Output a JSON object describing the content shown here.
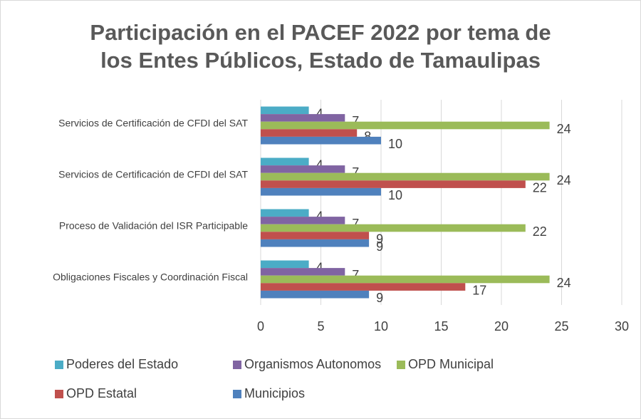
{
  "chart_data": {
    "type": "barh",
    "title": "Participación en el PACEF 2022 por tema de los Entes Públicos, Estado de Tamaulipas",
    "categories": [
      "Obligaciones Fiscales y Coordinación Fiscal",
      "Proceso de Validación del ISR Participable",
      "Servicios de Certificación de CFDI del SAT",
      "Servicios de Certificación de CFDI del SAT"
    ],
    "series": [
      {
        "name": "Poderes del Estado",
        "color": "#4bacc6",
        "values": [
          4,
          4,
          4,
          4
        ]
      },
      {
        "name": "Organismos Autonomos",
        "color": "#8064a2",
        "values": [
          7,
          7,
          7,
          7
        ]
      },
      {
        "name": "OPD Municipal",
        "color": "#9bbb59",
        "values": [
          24,
          22,
          24,
          24
        ]
      },
      {
        "name": "OPD Estatal",
        "color": "#c0504d",
        "values": [
          17,
          9,
          22,
          8
        ]
      },
      {
        "name": "Municipios",
        "color": "#4f81bd",
        "values": [
          9,
          9,
          10,
          10
        ]
      }
    ],
    "xlim": [
      0,
      30
    ],
    "xticks": [
      0,
      5,
      10,
      15,
      20,
      25,
      30
    ],
    "grid": true,
    "legend": "bottom"
  }
}
